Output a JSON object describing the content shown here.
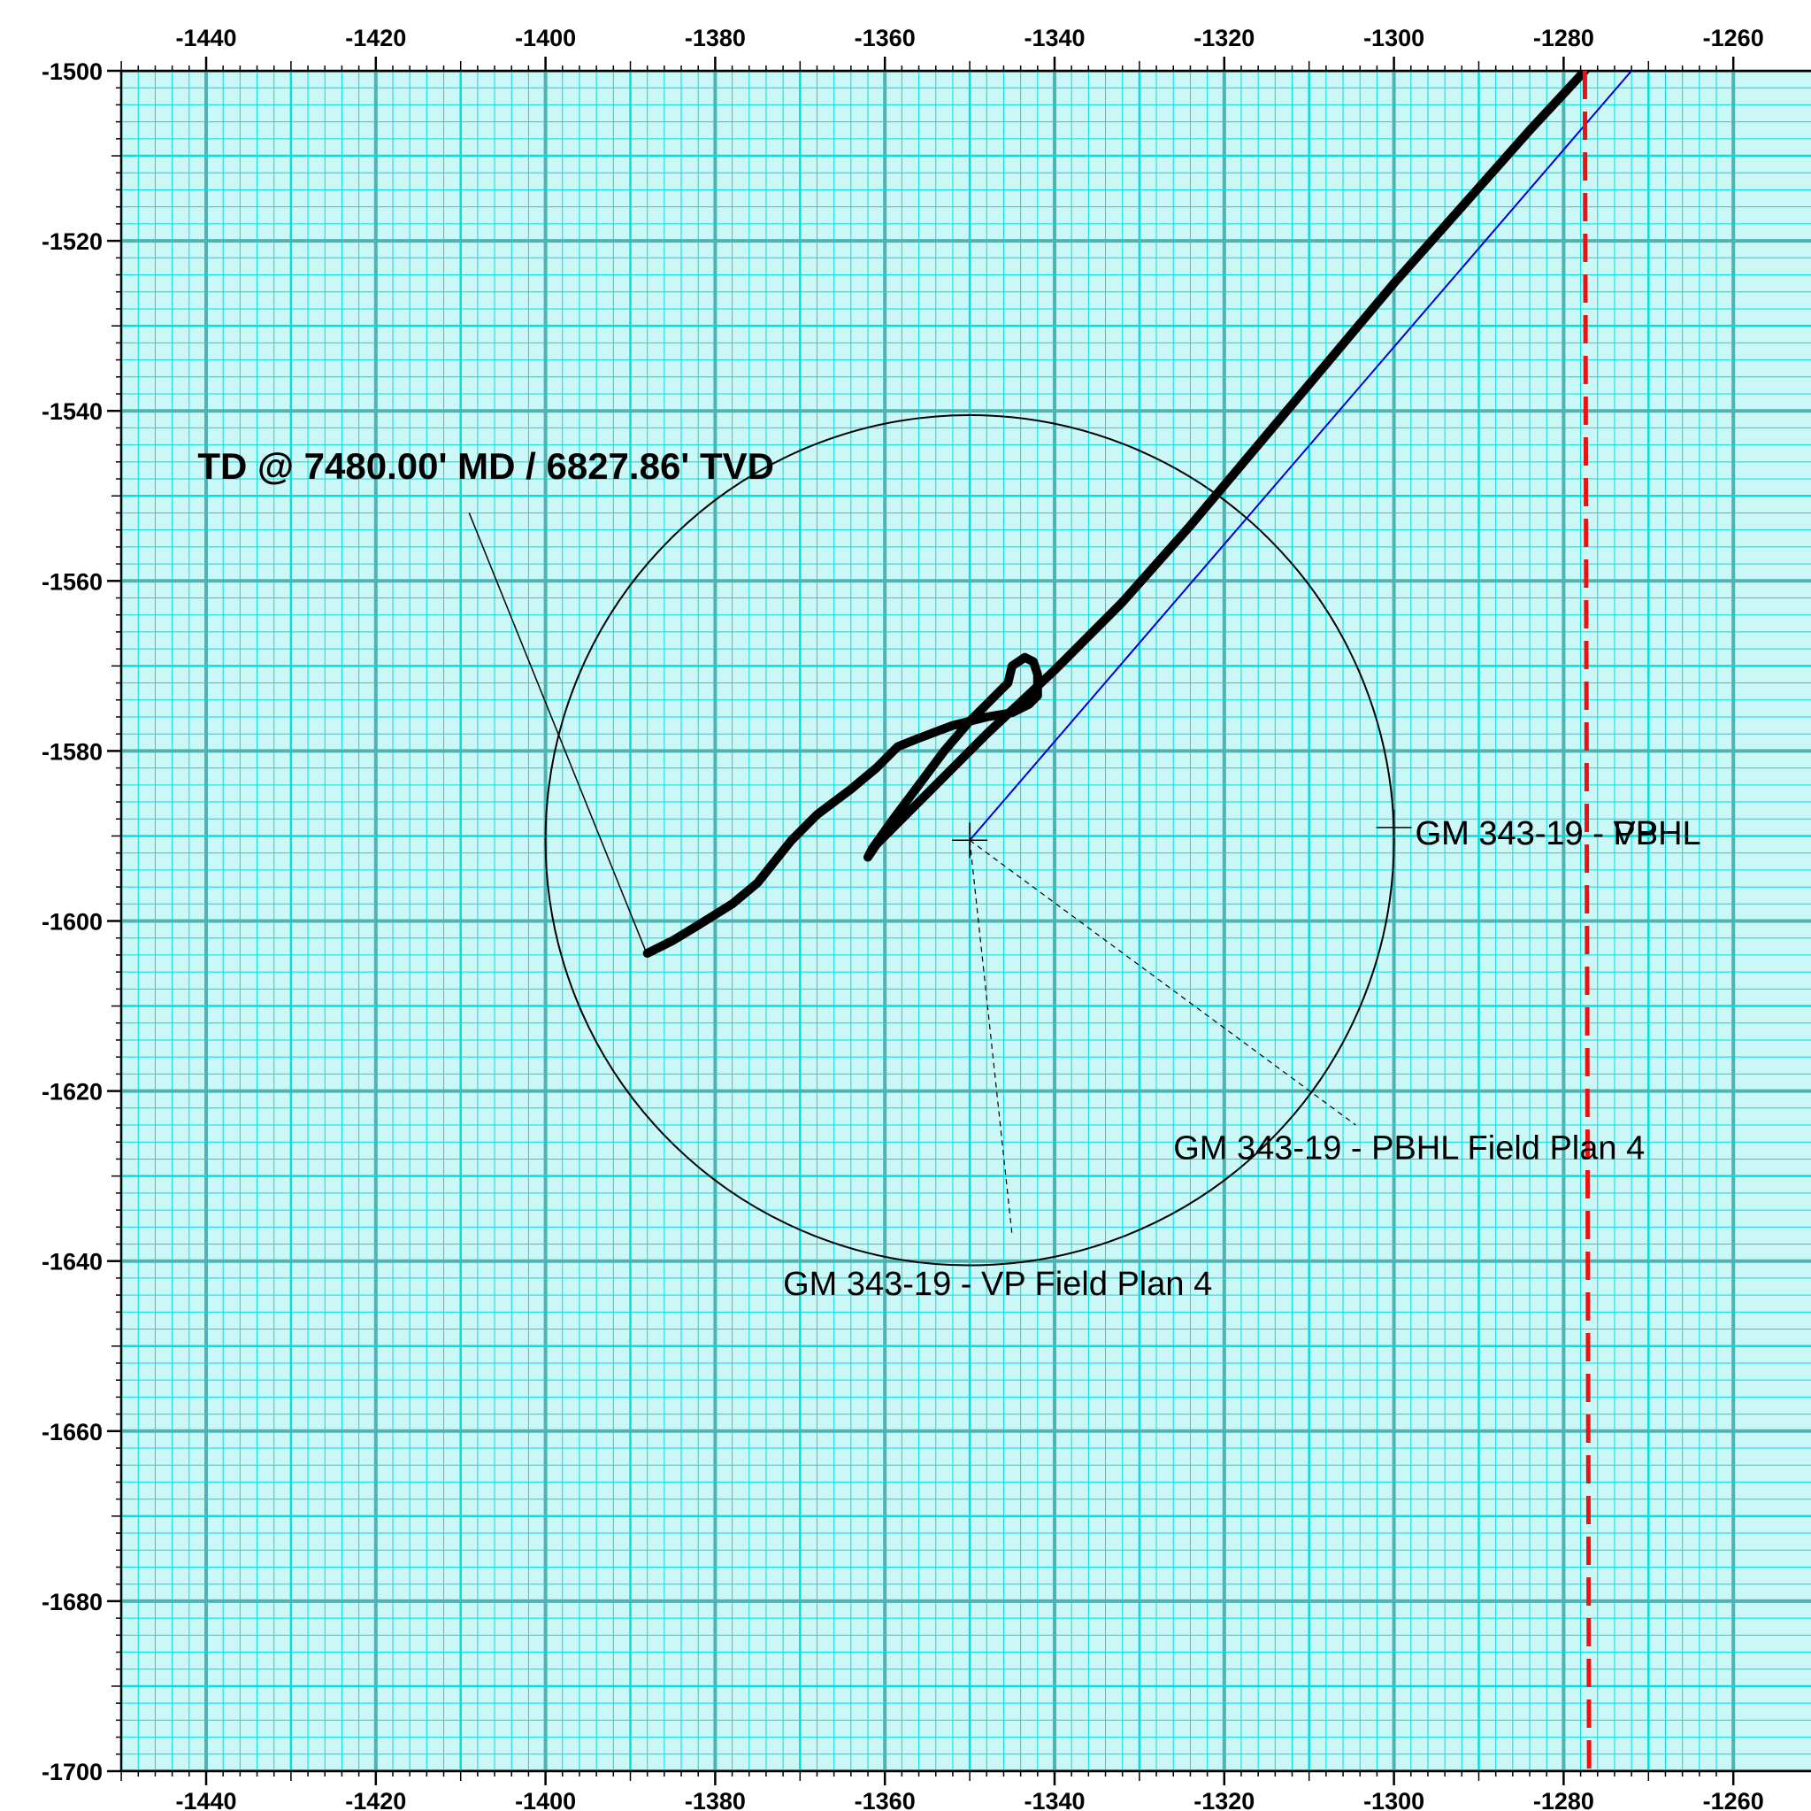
{
  "chart_data": {
    "type": "line",
    "xlim": [
      -1450,
      -1260
    ],
    "ylim": [
      -1700,
      -1500
    ],
    "x_ticks": [
      -1440,
      -1420,
      -1400,
      -1380,
      -1360,
      -1340,
      -1320,
      -1300,
      -1280,
      -1260
    ],
    "y_ticks": [
      -1500,
      -1520,
      -1540,
      -1560,
      -1580,
      -1600,
      -1620,
      -1640,
      -1660,
      -1680,
      -1700
    ],
    "x_tick_labels": [
      "-1440",
      "-1420",
      "-1400",
      "-1380",
      "-1360",
      "-1340",
      "-1320",
      "-1300",
      "-1280",
      "-1260"
    ],
    "y_tick_labels": [
      "-1500",
      "-1520",
      "-1540",
      "-1560",
      "-1580",
      "-1600",
      "-1620",
      "-1640",
      "-1660",
      "-1680",
      "-1700"
    ],
    "grid": {
      "major_step": 20,
      "medium_step": 10,
      "minor_step": 2
    },
    "colors": {
      "background": "#ccf7f7",
      "minor_grid": "#00e0e0",
      "medium_grid": "#00e0e0",
      "major_grid": "#4db3b3",
      "actual": "#000000",
      "plan": "#0000dd",
      "hardline": "#ee1111",
      "circle": "#000000"
    },
    "series": [
      {
        "style": "thick-black",
        "points": [
          [
            -1277.5,
            -1500
          ],
          [
            -1284,
            -1507
          ],
          [
            -1292,
            -1516
          ],
          [
            -1300,
            -1525
          ],
          [
            -1308,
            -1534.5
          ],
          [
            -1316,
            -1544
          ],
          [
            -1324,
            -1553.5
          ],
          [
            -1332,
            -1562.5
          ],
          [
            -1340,
            -1570.5
          ],
          [
            -1348,
            -1578
          ],
          [
            -1352,
            -1582
          ],
          [
            -1356,
            -1586
          ],
          [
            -1359,
            -1589
          ],
          [
            -1361,
            -1591
          ],
          [
            -1362,
            -1592.5
          ],
          [
            -1361.5,
            -1591.5
          ],
          [
            -1359,
            -1588
          ],
          [
            -1356,
            -1584
          ],
          [
            -1353,
            -1580
          ],
          [
            -1350,
            -1576.5
          ],
          [
            -1347,
            -1573.5
          ],
          [
            -1345.5,
            -1572
          ],
          [
            -1345,
            -1570
          ],
          [
            -1343.5,
            -1569
          ],
          [
            -1342.5,
            -1569.5
          ],
          [
            -1342,
            -1571
          ],
          [
            -1342,
            -1573.5
          ],
          [
            -1343,
            -1574.5
          ],
          [
            -1345,
            -1575.5
          ],
          [
            -1348,
            -1576
          ],
          [
            -1352,
            -1577
          ],
          [
            -1356,
            -1578.5
          ],
          [
            -1358.5,
            -1579.5
          ],
          [
            -1361,
            -1582
          ],
          [
            -1364,
            -1584.5
          ],
          [
            -1368,
            -1587.5
          ],
          [
            -1371,
            -1590.5
          ],
          [
            -1373,
            -1593
          ],
          [
            -1375,
            -1595.5
          ],
          [
            -1378,
            -1598
          ],
          [
            -1382,
            -1600.5
          ],
          [
            -1385,
            -1602.3
          ],
          [
            -1388,
            -1603.8
          ]
        ]
      },
      {
        "style": "thin-blue",
        "points": [
          [
            -1350,
            -1590.5
          ],
          [
            -1272,
            -1500
          ]
        ]
      },
      {
        "style": "dashed-red",
        "points": [
          [
            -1277.5,
            -1500
          ],
          [
            -1277,
            -1700
          ]
        ]
      }
    ],
    "circle": {
      "center": [
        -1350,
        -1590.5
      ],
      "radius": 50
    },
    "markers": [
      {
        "type": "cross",
        "at": [
          -1350,
          -1590.5
        ]
      },
      {
        "type": "cross",
        "at": [
          -1300,
          -1589
        ]
      }
    ],
    "annotations": [
      {
        "text": "TD @ 7480.00' MD / 6827.86' TVD",
        "bold": true,
        "at": [
          -1441,
          -1548
        ],
        "pointer": [
          [
            -1409,
            -1552
          ],
          [
            -1388,
            -1604
          ]
        ]
      },
      {
        "text": "GM 343-19 - VP",
        "bold": false,
        "at": [
          -1297.5,
          -1591
        ],
        "pointer": null
      },
      {
        "text": "GM 343-19 - PBHL",
        "bold": false,
        "at": [
          -1297.5,
          -1591
        ],
        "pointer": null
      },
      {
        "text": "GM 343-19 - PBHL Field Plan 4",
        "bold": false,
        "at": [
          -1326,
          -1628
        ],
        "pointer": [
          [
            -1350,
            -1590.5
          ],
          [
            -1304.5,
            -1624
          ]
        ]
      },
      {
        "text": "GM 343-19 - VP Field Plan 4",
        "bold": false,
        "at": [
          -1372,
          -1644
        ],
        "pointer": [
          [
            -1350,
            -1590.5
          ],
          [
            -1345,
            -1637
          ]
        ]
      }
    ]
  }
}
